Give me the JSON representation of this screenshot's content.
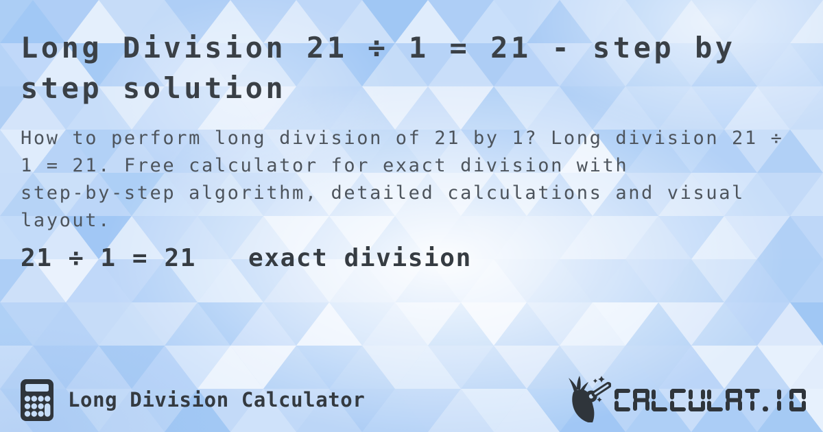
{
  "title": {
    "lines": [
      "Long Division 21 ÷ 1 = 21 - step by",
      "step solution"
    ]
  },
  "description": {
    "lines": [
      "How to perform long division of 21 by 1? Long division 21 ÷",
      "1 = 21. Free calculator for exact division with",
      "step-by-step algorithm, detailed calculations and visual",
      "layout."
    ]
  },
  "result": {
    "equation": "21 ÷ 1 = 21",
    "label": "exact division"
  },
  "footer": {
    "app_name": "Long Division Calculator",
    "app_icon": "calculator-icon",
    "brand": {
      "text": "CALCULAT.IO",
      "icon": "hand-wand-icon"
    }
  },
  "colors": {
    "background_base": "#b7d3f7",
    "title_text": "#3a4046",
    "body_text": "#4d545c",
    "ink_dark": "#2f353b"
  }
}
